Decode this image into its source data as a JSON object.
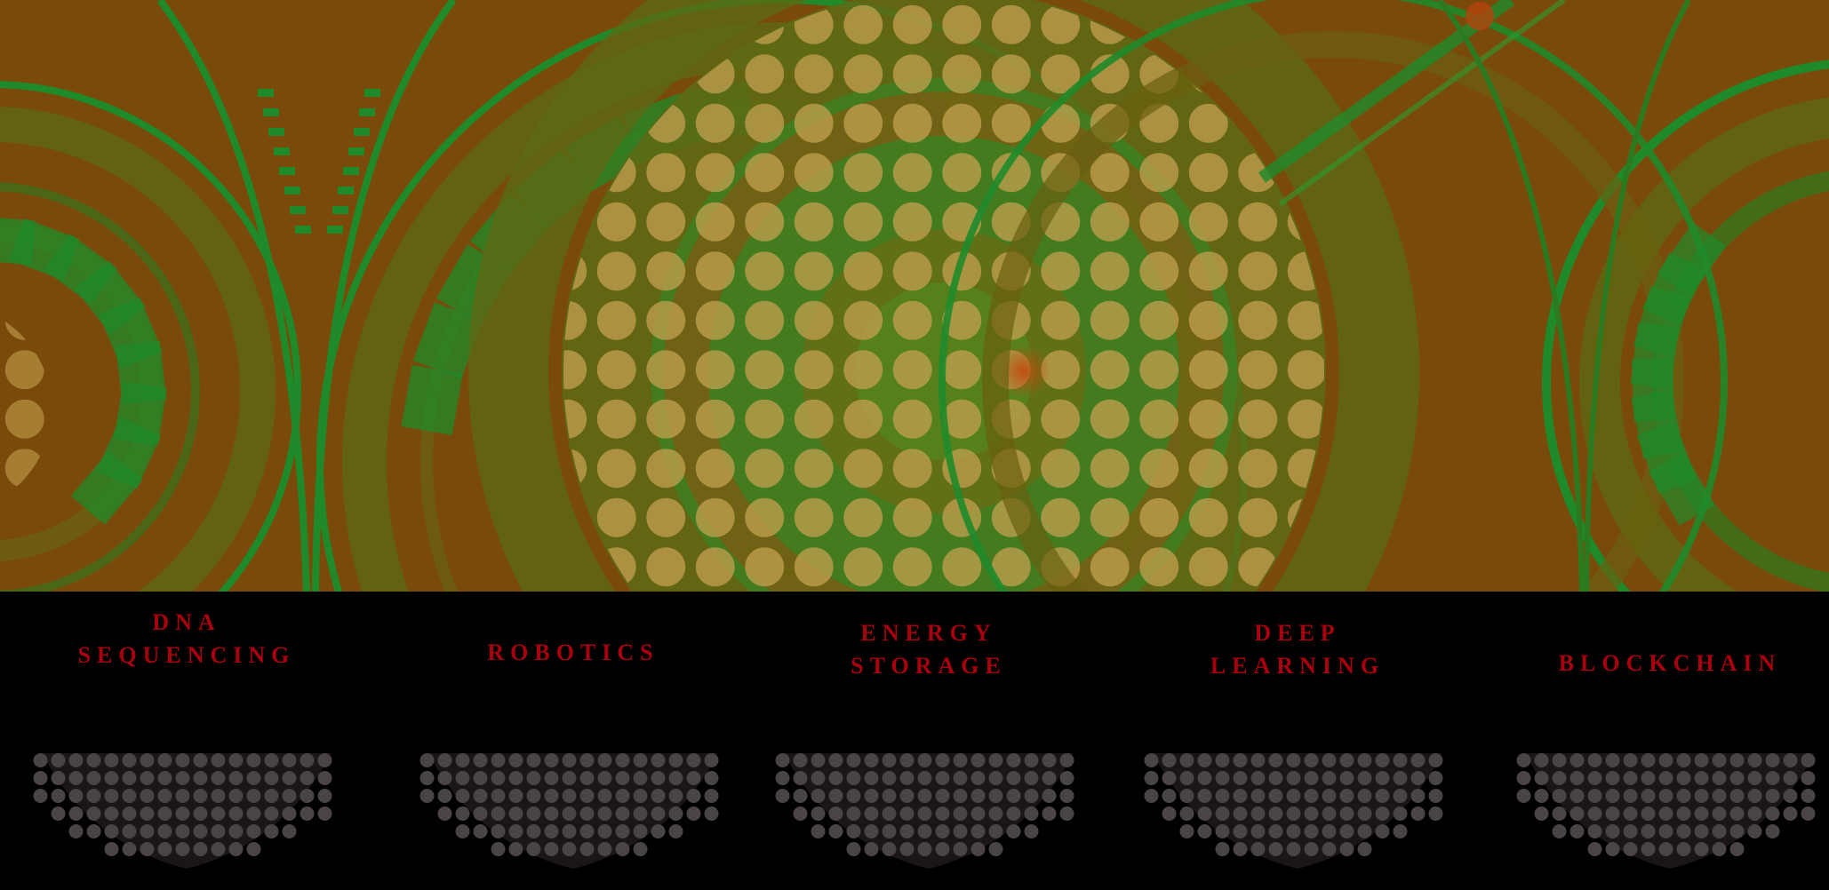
{
  "hero": {
    "name": "circuit-dial-artwork",
    "palette": {
      "base": "#7a4a0a",
      "green": "#1f8a2a",
      "amber": "#a57a2c",
      "dot": "#c2a050",
      "red": "#b5420e"
    }
  },
  "tiles": [
    {
      "id": "dna",
      "label": "DNA\nSEQUENCING",
      "lines": 2
    },
    {
      "id": "robotics",
      "label": "ROBOTICS",
      "lines": 1
    },
    {
      "id": "energy",
      "label": "ENERGY\nSTORAGE",
      "lines": 2
    },
    {
      "id": "deep-learning",
      "label": "DEEP\nLEARNING",
      "lines": 2
    },
    {
      "id": "blockchain",
      "label": "BLOCKCHAIN",
      "lines": 1
    }
  ],
  "tile_style": {
    "label_color": "#a8000f",
    "dot_color": "#4a4448",
    "background": "#000000"
  }
}
